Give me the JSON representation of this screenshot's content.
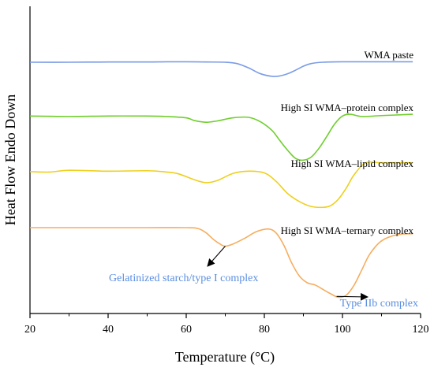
{
  "chart_data": {
    "type": "line",
    "title": "",
    "xlabel": "Temperature (°C)",
    "ylabel": "Heat Flow Endo Down",
    "xlim": [
      20,
      120
    ],
    "xticks": [
      20,
      40,
      60,
      80,
      100,
      120
    ],
    "y_ticks_shown": false,
    "grid": false,
    "series": [
      {
        "name": "WMA paste",
        "color": "#7b9ce6",
        "x": [
          20,
          30,
          40,
          50,
          55,
          60,
          65,
          70,
          73,
          76,
          79,
          82,
          84,
          86,
          88,
          90,
          92,
          95,
          100,
          105,
          110,
          118
        ],
        "y": [
          0.0,
          0.0,
          0.05,
          0.05,
          0.1,
          0.1,
          0.05,
          0.0,
          -0.3,
          -1.3,
          -2.6,
          -3.2,
          -3.1,
          -2.6,
          -1.8,
          -0.9,
          -0.3,
          0.0,
          0.1,
          0.1,
          0.1,
          0.1
        ]
      },
      {
        "name": "High SI WMA–protein complex",
        "color": "#6fce2c",
        "x": [
          20,
          30,
          40,
          50,
          55,
          60,
          62,
          65,
          68,
          72,
          76,
          79,
          82,
          84,
          86,
          88,
          90,
          92,
          94,
          96,
          98,
          100,
          102,
          105,
          110,
          118
        ],
        "y": [
          -12.2,
          -12.3,
          -12.2,
          -12.2,
          -12.3,
          -12.6,
          -13.2,
          -13.6,
          -13.3,
          -12.6,
          -12.5,
          -13.5,
          -15.5,
          -17.8,
          -20.0,
          -21.8,
          -22.2,
          -21.5,
          -19.5,
          -16.8,
          -14.0,
          -12.2,
          -11.8,
          -12.3,
          -12.1,
          -11.8
        ]
      },
      {
        "name": "High SI WMA–lipid complex",
        "color": "#eed01c",
        "x": [
          20,
          25,
          30,
          40,
          50,
          55,
          58,
          62,
          65,
          68,
          72,
          76,
          80,
          83,
          86,
          89,
          92,
          95,
          97,
          99,
          101,
          103,
          106,
          110,
          118
        ],
        "y": [
          -24.8,
          -24.9,
          -24.5,
          -24.7,
          -24.6,
          -24.9,
          -25.3,
          -26.6,
          -27.3,
          -26.8,
          -25.2,
          -24.7,
          -25.1,
          -27.0,
          -29.8,
          -31.6,
          -32.7,
          -32.9,
          -32.5,
          -31.0,
          -28.5,
          -25.5,
          -22.8,
          -22.8,
          -22.8
        ]
      },
      {
        "name": "High SI WMA–ternary complex",
        "color": "#f6ad5e",
        "x": [
          20,
          30,
          40,
          50,
          60,
          63,
          65,
          67,
          69,
          70,
          72,
          75,
          78,
          81,
          83,
          85,
          87,
          89,
          91,
          93,
          95,
          97,
          99,
          101,
          103,
          105,
          107,
          110,
          114,
          118
        ],
        "y": [
          -37.5,
          -37.5,
          -37.5,
          -37.5,
          -37.5,
          -37.7,
          -38.6,
          -40.2,
          -41.4,
          -41.7,
          -41.2,
          -39.9,
          -38.4,
          -37.8,
          -38.7,
          -41.5,
          -45.5,
          -48.5,
          -50.0,
          -50.5,
          -51.5,
          -52.5,
          -53.3,
          -52.8,
          -50.5,
          -47.0,
          -43.5,
          -40.5,
          -39.1,
          -38.9
        ]
      }
    ],
    "annotations": [
      {
        "text": "Gelatinized starch/type I complex",
        "color": "#5a8ee0",
        "points_to_series": "High SI WMA–ternary complex",
        "points_to_x": 70
      },
      {
        "text": "Type IIb complex",
        "color": "#5a8ee0",
        "points_to_series": "High SI WMA–ternary complex",
        "points_to_x": 98.5
      }
    ]
  }
}
